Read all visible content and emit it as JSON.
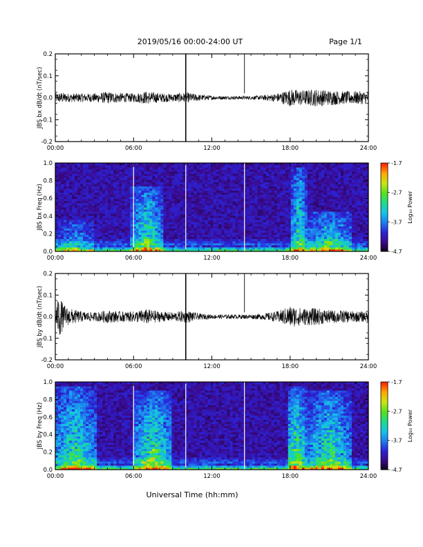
{
  "header": {
    "title": "2019/05/16  00:00-24:00 UT",
    "page": "Page 1/1"
  },
  "footer": {
    "xlabel": "Universal Time (hh:mm)"
  },
  "colors": {
    "trace": "#000000",
    "colormap": [
      "#0a0010",
      "#3b0a8c",
      "#2a24d8",
      "#1d7ef0",
      "#15c4e6",
      "#1ddc8a",
      "#56e21c",
      "#c8e614",
      "#ffa800",
      "#ff2200"
    ]
  },
  "colorbar": {
    "label": "Log₁₀ Power",
    "ticks": [
      "-1.7",
      "-2.7",
      "-3.7",
      "-4.7"
    ],
    "range": [
      -4.7,
      -1.7
    ]
  },
  "chart_data": [
    {
      "type": "line",
      "ylabel": "JBS bx dB/dt (nT/sec)",
      "ylim": [
        -0.2,
        0.2
      ],
      "yticks": [
        "0.2",
        "0.1",
        "0.0",
        "-0.1",
        "-0.2"
      ],
      "xticks": [
        "00:00",
        "06:00",
        "12:00",
        "18:00",
        "24:00"
      ],
      "xlim_hours": [
        0,
        24
      ],
      "spikes_hours": [
        10.0,
        14.5
      ],
      "envelope": {
        "hours": [
          0,
          0.5,
          1,
          2,
          3,
          4,
          5,
          6,
          7,
          8,
          9,
          10,
          11,
          12,
          13,
          14,
          15,
          16,
          17,
          18,
          19,
          20,
          21,
          22,
          23,
          24
        ],
        "amplitude": [
          0.02,
          0.025,
          0.02,
          0.02,
          0.02,
          0.028,
          0.022,
          0.02,
          0.03,
          0.022,
          0.018,
          0.025,
          0.015,
          0.01,
          0.008,
          0.008,
          0.008,
          0.012,
          0.02,
          0.04,
          0.035,
          0.04,
          0.035,
          0.03,
          0.03,
          0.03
        ]
      }
    },
    {
      "type": "heatmap",
      "ylabel": "JBS bx Freq (Hz)",
      "ylim": [
        0.0,
        1.0
      ],
      "yticks": [
        "1.0",
        "0.8",
        "0.6",
        "0.4",
        "0.2",
        "0.0"
      ],
      "xticks": [
        "00:00",
        "06:00",
        "12:00",
        "18:00",
        "24:00"
      ],
      "xlim_hours": [
        0,
        24
      ],
      "gaps_hours": [
        6.0,
        10.0,
        14.5
      ],
      "activity": [
        {
          "center_hours": 7.0,
          "width_hours": 2.5,
          "top_freq": 0.75,
          "level": 0.55
        },
        {
          "center_hours": 18.7,
          "width_hours": 1.2,
          "top_freq": 0.95,
          "level": 0.55
        },
        {
          "center_hours": 21.0,
          "width_hours": 3.5,
          "top_freq": 0.45,
          "level": 0.5
        },
        {
          "center_hours": 1.5,
          "width_hours": 3.0,
          "top_freq": 0.35,
          "level": 0.35
        }
      ]
    },
    {
      "type": "line",
      "ylabel": "JBS by dB/dt (nT/sec)",
      "ylim": [
        -0.2,
        0.2
      ],
      "yticks": [
        "0.2",
        "0.1",
        "0.0",
        "-0.1",
        "-0.2"
      ],
      "xticks": [
        "00:00",
        "06:00",
        "12:00",
        "18:00",
        "24:00"
      ],
      "xlim_hours": [
        0,
        24
      ],
      "spikes_hours": [
        10.0,
        14.5
      ],
      "envelope": {
        "hours": [
          0,
          0.3,
          0.6,
          1,
          2,
          3,
          4,
          5,
          6,
          7,
          8,
          9,
          10,
          11,
          12,
          13,
          14,
          15,
          16,
          17,
          18,
          19,
          20,
          21,
          22,
          23,
          24
        ],
        "amplitude": [
          0.04,
          0.1,
          0.06,
          0.04,
          0.025,
          0.02,
          0.03,
          0.025,
          0.025,
          0.035,
          0.025,
          0.02,
          0.03,
          0.015,
          0.01,
          0.01,
          0.01,
          0.01,
          0.015,
          0.025,
          0.05,
          0.04,
          0.04,
          0.03,
          0.03,
          0.025,
          0.025
        ]
      }
    },
    {
      "type": "heatmap",
      "ylabel": "JBS by Freq (Hz)",
      "ylim": [
        0.0,
        1.0
      ],
      "yticks": [
        "1.0",
        "0.8",
        "0.6",
        "0.4",
        "0.2",
        "0.0"
      ],
      "xticks": [
        "00:00",
        "06:00",
        "12:00",
        "18:00",
        "24:00"
      ],
      "xlim_hours": [
        0,
        24
      ],
      "gaps_hours": [
        6.0,
        10.0,
        14.5
      ],
      "activity": [
        {
          "center_hours": 1.5,
          "width_hours": 3.5,
          "top_freq": 0.95,
          "level": 0.55
        },
        {
          "center_hours": 7.5,
          "width_hours": 3.0,
          "top_freq": 0.9,
          "level": 0.6
        },
        {
          "center_hours": 18.5,
          "width_hours": 1.5,
          "top_freq": 0.95,
          "level": 0.65
        },
        {
          "center_hours": 21.0,
          "width_hours": 3.5,
          "top_freq": 0.9,
          "level": 0.55
        }
      ]
    }
  ]
}
